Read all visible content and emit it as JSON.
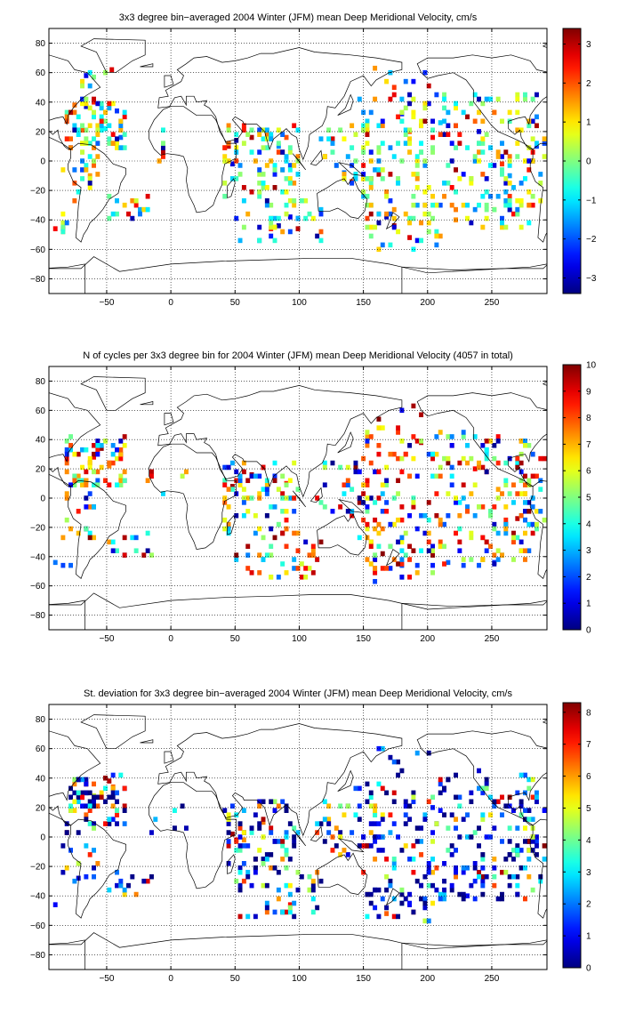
{
  "chart_data": [
    {
      "type": "heatmap",
      "title": "3x3 degree bin−averaged 2004 Winter (JFM) mean Deep Meridional Velocity, cm/s",
      "xlim": [
        -95,
        293
      ],
      "ylim": [
        -90,
        90
      ],
      "xticks": [
        -50,
        0,
        50,
        100,
        150,
        200,
        250
      ],
      "yticks": [
        -80,
        -60,
        -40,
        -20,
        0,
        20,
        40,
        60,
        80
      ],
      "grid": "dotted",
      "colorbar": {
        "min": -3.4,
        "max": 3.4,
        "ticks": [
          -3,
          -2,
          -1,
          0,
          1,
          2,
          3
        ],
        "colormap": "jet"
      },
      "seed": 11,
      "cells": [
        [
          -75,
          38,
          1.8
        ],
        [
          -66,
          37,
          -2.9
        ],
        [
          -60,
          40,
          2.4
        ],
        [
          -54,
          36,
          -1.2
        ],
        [
          -48,
          38,
          0.6
        ],
        [
          -42,
          34,
          -2.2
        ],
        [
          -57,
          24,
          1.1
        ],
        [
          -51,
          22,
          -0.8
        ],
        [
          -45,
          18,
          2.6
        ],
        [
          -39,
          16,
          -1.9
        ],
        [
          -69,
          -6,
          -2.1
        ],
        [
          -63,
          -10,
          1.5
        ],
        [
          -33,
          -36,
          2.8
        ],
        [
          -24,
          -33,
          -1.4
        ],
        [
          45,
          10,
          2.9
        ],
        [
          51,
          14,
          -3.2
        ],
        [
          57,
          12,
          0.4
        ],
        [
          48,
          -2,
          -2.8
        ],
        [
          63,
          16,
          3.1
        ],
        [
          69,
          6,
          -2.3
        ],
        [
          78,
          16,
          2.2
        ],
        [
          84,
          10,
          -1.6
        ],
        [
          90,
          16,
          2.0
        ],
        [
          84,
          -44,
          -3.1
        ],
        [
          78,
          -46,
          2.4
        ],
        [
          93,
          -38,
          -2.7
        ],
        [
          99,
          -46,
          3.0
        ],
        [
          135,
          -8,
          -1.8
        ],
        [
          141,
          -14,
          2.2
        ],
        [
          180,
          32,
          -2.4
        ],
        [
          186,
          20,
          1.9
        ],
        [
          195,
          24,
          -3.0
        ],
        [
          204,
          16,
          2.6
        ],
        [
          210,
          26,
          -1.2
        ],
        [
          225,
          12,
          2.9
        ],
        [
          240,
          20,
          -2.8
        ],
        [
          258,
          -2,
          2.2
        ],
        [
          264,
          -10,
          -1.5
        ],
        [
          210,
          -30,
          -2.0
        ],
        [
          222,
          -40,
          1.6
        ],
        [
          186,
          -52,
          2.8
        ],
        [
          192,
          -54,
          -2.6
        ],
        [
          174,
          -44,
          3.1
        ],
        [
          168,
          -38,
          -3.0
        ],
        [
          279,
          -6,
          2.4
        ],
        [
          285,
          10,
          -2.1
        ],
        [
          -90,
          -46,
          2.6
        ],
        [
          -84,
          -46,
          -2.9
        ],
        [
          174,
          50,
          2.2
        ],
        [
          183,
          54,
          -1.8
        ],
        [
          -66,
          58,
          -2.7
        ],
        [
          -46,
          62,
          2.8
        ]
      ],
      "regions": [
        {
          "lon": [
            -82,
            -35
          ],
          "lat": [
            8,
            42
          ],
          "n": 70
        },
        {
          "lon": [
            -50,
            -15
          ],
          "lat": [
            -40,
            -25
          ],
          "n": 14
        },
        {
          "lon": [
            -85,
            -55
          ],
          "lat": [
            -30,
            8
          ],
          "n": 18
        },
        {
          "lon": [
            -20,
            15
          ],
          "lat": [
            0,
            20
          ],
          "n": 6
        },
        {
          "lon": [
            40,
            100
          ],
          "lat": [
            -25,
            25
          ],
          "n": 80
        },
        {
          "lon": [
            50,
            120
          ],
          "lat": [
            -55,
            -25
          ],
          "n": 40
        },
        {
          "lon": [
            115,
            165
          ],
          "lat": [
            -15,
            25
          ],
          "n": 40
        },
        {
          "lon": [
            145,
            285
          ],
          "lat": [
            -30,
            45
          ],
          "n": 190
        },
        {
          "lon": [
            150,
            280
          ],
          "lat": [
            -45,
            -30
          ],
          "n": 50
        },
        {
          "lon": [
            150,
            210
          ],
          "lat": [
            -60,
            -45
          ],
          "n": 14
        },
        {
          "lon": [
            -92,
            -80
          ],
          "lat": [
            -50,
            -35
          ],
          "n": 6
        },
        {
          "lon": [
            260,
            292
          ],
          "lat": [
            -35,
            30
          ],
          "n": 30
        },
        {
          "lon": [
            -70,
            -40
          ],
          "lat": [
            45,
            62
          ],
          "n": 6
        },
        {
          "lon": [
            160,
            200
          ],
          "lat": [
            45,
            62
          ],
          "n": 8
        }
      ]
    },
    {
      "type": "heatmap",
      "title": "N of cycles per 3x3 degree bin for 2004 Winter (JFM) mean Deep Meridional Velocity (4057 in total)",
      "xlim": [
        -95,
        293
      ],
      "ylim": [
        -90,
        90
      ],
      "xticks": [
        -50,
        0,
        50,
        100,
        150,
        200,
        250
      ],
      "yticks": [
        -80,
        -60,
        -40,
        -20,
        0,
        20,
        40,
        60,
        80
      ],
      "grid": "dotted",
      "colorbar": {
        "min": 0,
        "max": 10,
        "ticks": [
          0,
          1,
          2,
          3,
          4,
          5,
          6,
          7,
          8,
          9,
          10
        ],
        "colormap": "jet"
      },
      "seed": 23,
      "cells": [
        [
          -72,
          30,
          9.5
        ],
        [
          -60,
          28,
          8.8
        ],
        [
          -54,
          34,
          9.8
        ],
        [
          -48,
          22,
          7.5
        ],
        [
          48,
          8,
          9.7
        ],
        [
          54,
          14,
          8.9
        ],
        [
          63,
          16,
          9.6
        ],
        [
          81,
          14,
          9.2
        ],
        [
          90,
          10,
          8.4
        ],
        [
          195,
          38,
          9.5
        ],
        [
          204,
          30,
          9.8
        ],
        [
          219,
          36,
          9.1
        ],
        [
          237,
          20,
          8.7
        ],
        [
          210,
          -30,
          8.0
        ],
        [
          270,
          -14,
          9.4
        ],
        [
          165,
          -38,
          9.9
        ],
        [
          180,
          -46,
          2.0
        ],
        [
          192,
          -46,
          1.8
        ],
        [
          204,
          -46,
          1.5
        ],
        [
          216,
          -44,
          2.2
        ],
        [
          228,
          -46,
          1.9
        ],
        [
          240,
          -46,
          2.1
        ],
        [
          252,
          -44,
          1.6
        ],
        [
          -90,
          -44,
          2.4
        ],
        [
          -84,
          -46,
          1.9
        ],
        [
          -78,
          -46,
          2.2
        ],
        [
          102,
          -54,
          9.0
        ],
        [
          96,
          -48,
          2.5
        ]
      ],
      "regions": [
        {
          "lon": [
            -82,
            -35
          ],
          "lat": [
            8,
            42
          ],
          "n": 70
        },
        {
          "lon": [
            -50,
            -15
          ],
          "lat": [
            -40,
            -25
          ],
          "n": 14
        },
        {
          "lon": [
            -85,
            -55
          ],
          "lat": [
            -30,
            8
          ],
          "n": 18
        },
        {
          "lon": [
            -20,
            15
          ],
          "lat": [
            0,
            20
          ],
          "n": 6
        },
        {
          "lon": [
            40,
            100
          ],
          "lat": [
            -25,
            25
          ],
          "n": 80
        },
        {
          "lon": [
            50,
            120
          ],
          "lat": [
            -55,
            -25
          ],
          "n": 40
        },
        {
          "lon": [
            115,
            165
          ],
          "lat": [
            -15,
            25
          ],
          "n": 40
        },
        {
          "lon": [
            145,
            285
          ],
          "lat": [
            -30,
            45
          ],
          "n": 190
        },
        {
          "lon": [
            150,
            280
          ],
          "lat": [
            -45,
            -30
          ],
          "n": 50
        },
        {
          "lon": [
            150,
            210
          ],
          "lat": [
            -60,
            -45
          ],
          "n": 14
        },
        {
          "lon": [
            260,
            292
          ],
          "lat": [
            -35,
            30
          ],
          "n": 30
        },
        {
          "lon": [
            160,
            200
          ],
          "lat": [
            45,
            62
          ],
          "n": 8
        }
      ]
    },
    {
      "type": "heatmap",
      "title": "St. deviation for 3x3 degree bin−averaged 2004 Winter (JFM) mean Deep Meridional Velocity, cm/s",
      "xlim": [
        -95,
        293
      ],
      "ylim": [
        -90,
        90
      ],
      "xticks": [
        -50,
        0,
        50,
        100,
        150,
        200,
        250
      ],
      "yticks": [
        -80,
        -60,
        -40,
        -20,
        0,
        20,
        40,
        60,
        80
      ],
      "grid": "dotted",
      "colorbar": {
        "min": 0,
        "max": 8.3,
        "ticks": [
          0,
          1,
          2,
          3,
          4,
          5,
          6,
          7,
          8
        ],
        "colormap": "jet"
      },
      "seed": 37,
      "cells": [
        [
          48,
          2,
          8.0
        ],
        [
          51,
          -2,
          7.4
        ],
        [
          54,
          6,
          6.8
        ],
        [
          45,
          -6,
          7.7
        ],
        [
          57,
          -2,
          6.1
        ],
        [
          -48,
          38,
          7.9
        ],
        [
          -45,
          34,
          6.5
        ],
        [
          -54,
          30,
          5.5
        ],
        [
          -51,
          40,
          8.1
        ],
        [
          72,
          10,
          6.3
        ],
        [
          84,
          -42,
          6.0
        ],
        [
          93,
          -46,
          7.2
        ],
        [
          204,
          20,
          1.2
        ],
        [
          213,
          32,
          0.8
        ],
        [
          186,
          -46,
          0.9
        ],
        [
          231,
          -40,
          1.1
        ],
        [
          168,
          -52,
          6.5
        ],
        [
          174,
          -54,
          7.4
        ],
        [
          -60,
          28,
          4.8
        ],
        [
          -72,
          -28,
          0.6
        ],
        [
          189,
          24,
          1.4
        ],
        [
          -90,
          -46,
          1.0
        ]
      ],
      "regions": [
        {
          "lon": [
            -82,
            -35
          ],
          "lat": [
            8,
            42
          ],
          "n": 70
        },
        {
          "lon": [
            -50,
            -15
          ],
          "lat": [
            -40,
            -25
          ],
          "n": 14
        },
        {
          "lon": [
            -85,
            -55
          ],
          "lat": [
            -30,
            8
          ],
          "n": 18
        },
        {
          "lon": [
            -20,
            15
          ],
          "lat": [
            0,
            20
          ],
          "n": 6
        },
        {
          "lon": [
            40,
            100
          ],
          "lat": [
            -25,
            25
          ],
          "n": 80
        },
        {
          "lon": [
            50,
            120
          ],
          "lat": [
            -55,
            -25
          ],
          "n": 40
        },
        {
          "lon": [
            115,
            165
          ],
          "lat": [
            -15,
            25
          ],
          "n": 40
        },
        {
          "lon": [
            145,
            285
          ],
          "lat": [
            -30,
            45
          ],
          "n": 190
        },
        {
          "lon": [
            150,
            280
          ],
          "lat": [
            -45,
            -30
          ],
          "n": 50
        },
        {
          "lon": [
            150,
            210
          ],
          "lat": [
            -60,
            -45
          ],
          "n": 14
        },
        {
          "lon": [
            260,
            292
          ],
          "lat": [
            -35,
            30
          ],
          "n": 30
        },
        {
          "lon": [
            160,
            200
          ],
          "lat": [
            45,
            62
          ],
          "n": 8
        }
      ]
    }
  ]
}
